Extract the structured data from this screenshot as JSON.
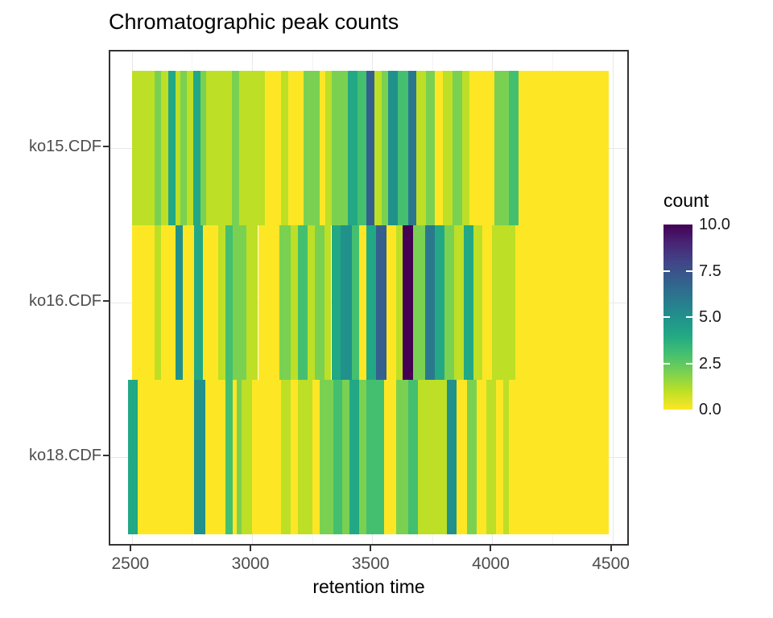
{
  "figure": {
    "title": "Chromatographic peak counts",
    "background": "#ffffff"
  },
  "chart_data": {
    "type": "heatmap",
    "title": "Chromatographic peak counts",
    "xlabel": "retention time",
    "ylabel": "",
    "legend_title": "count",
    "legend_position": "right",
    "grid": true,
    "x_domain": [
      2410,
      4575
    ],
    "x_ticks": [
      2500,
      3000,
      3500,
      4000,
      4500
    ],
    "x_minor_ticks": [
      2750,
      3250,
      3750,
      4250
    ],
    "categories": [
      "ko15.CDF",
      "ko16.CDF",
      "ko18.CDF"
    ],
    "legend_ticks": [
      0.0,
      2.5,
      5.0,
      7.5,
      10.0
    ],
    "count_domain": [
      0,
      10
    ],
    "palette_note": "reversed viridis, index = count 0..10",
    "palette": [
      "#FDE725",
      "#BDDF26",
      "#7AD151",
      "#44BF70",
      "#22A884",
      "#21918C",
      "#2A788E",
      "#355F8D",
      "#414487",
      "#482475",
      "#440154"
    ],
    "series": [
      {
        "name": "ko15.CDF",
        "runs": [
          [
            2500,
            2595,
            1
          ],
          [
            2595,
            2620,
            2
          ],
          [
            2620,
            2650,
            1
          ],
          [
            2650,
            2680,
            4
          ],
          [
            2680,
            2700,
            1
          ],
          [
            2700,
            2730,
            2
          ],
          [
            2730,
            2755,
            1
          ],
          [
            2755,
            2785,
            4
          ],
          [
            2785,
            2810,
            2
          ],
          [
            2810,
            2915,
            1
          ],
          [
            2915,
            2945,
            2
          ],
          [
            2945,
            3055,
            1
          ],
          [
            3055,
            3120,
            0
          ],
          [
            3120,
            3150,
            1
          ],
          [
            3150,
            3215,
            0
          ],
          [
            3215,
            3280,
            2
          ],
          [
            3280,
            3305,
            0
          ],
          [
            3305,
            3330,
            1
          ],
          [
            3330,
            3400,
            2
          ],
          [
            3400,
            3440,
            4
          ],
          [
            3440,
            3475,
            3
          ],
          [
            3475,
            3510,
            7
          ],
          [
            3510,
            3540,
            1
          ],
          [
            3540,
            3565,
            2
          ],
          [
            3565,
            3605,
            5
          ],
          [
            3605,
            3650,
            3
          ],
          [
            3650,
            3685,
            6
          ],
          [
            3685,
            3725,
            1
          ],
          [
            3725,
            3760,
            2
          ],
          [
            3760,
            3795,
            0
          ],
          [
            3795,
            3835,
            1
          ],
          [
            3835,
            3875,
            2
          ],
          [
            3875,
            3905,
            1
          ],
          [
            3905,
            4010,
            0
          ],
          [
            4010,
            4070,
            2
          ],
          [
            4070,
            4110,
            3
          ],
          [
            4110,
            4485,
            0
          ]
        ]
      },
      {
        "name": "ko16.CDF",
        "runs": [
          [
            2500,
            2595,
            0
          ],
          [
            2595,
            2620,
            1
          ],
          [
            2620,
            2680,
            0
          ],
          [
            2680,
            2710,
            5
          ],
          [
            2710,
            2760,
            0
          ],
          [
            2760,
            2795,
            4
          ],
          [
            2795,
            2860,
            0
          ],
          [
            2860,
            2890,
            1
          ],
          [
            2890,
            2920,
            3
          ],
          [
            2920,
            2975,
            2
          ],
          [
            2975,
            3025,
            1
          ],
          [
            3025,
            3115,
            0
          ],
          [
            3115,
            3160,
            2
          ],
          [
            3160,
            3190,
            1
          ],
          [
            3190,
            3230,
            3
          ],
          [
            3230,
            3260,
            1
          ],
          [
            3260,
            3300,
            2
          ],
          [
            3300,
            3330,
            1
          ],
          [
            3330,
            3370,
            4
          ],
          [
            3370,
            3415,
            5
          ],
          [
            3415,
            3445,
            3
          ],
          [
            3445,
            3475,
            0
          ],
          [
            3475,
            3515,
            4
          ],
          [
            3515,
            3560,
            7
          ],
          [
            3560,
            3600,
            0
          ],
          [
            3600,
            3625,
            1
          ],
          [
            3625,
            3670,
            10
          ],
          [
            3670,
            3720,
            2
          ],
          [
            3720,
            3760,
            6
          ],
          [
            3760,
            3800,
            4
          ],
          [
            3800,
            3840,
            2
          ],
          [
            3840,
            3880,
            1
          ],
          [
            3880,
            3920,
            4
          ],
          [
            3920,
            3960,
            1
          ],
          [
            3960,
            4000,
            0
          ],
          [
            4000,
            4095,
            1
          ],
          [
            4095,
            4485,
            0
          ]
        ]
      },
      {
        "name": "ko18.CDF",
        "runs": [
          [
            2485,
            2525,
            4
          ],
          [
            2525,
            2760,
            0
          ],
          [
            2760,
            2805,
            5
          ],
          [
            2805,
            2890,
            0
          ],
          [
            2890,
            2920,
            3
          ],
          [
            2920,
            2935,
            0
          ],
          [
            2935,
            2955,
            2
          ],
          [
            2955,
            3000,
            1
          ],
          [
            3000,
            3120,
            0
          ],
          [
            3120,
            3160,
            1
          ],
          [
            3160,
            3190,
            0
          ],
          [
            3190,
            3250,
            1
          ],
          [
            3250,
            3280,
            0
          ],
          [
            3280,
            3340,
            2
          ],
          [
            3340,
            3375,
            3
          ],
          [
            3375,
            3405,
            2
          ],
          [
            3405,
            3445,
            4
          ],
          [
            3445,
            3475,
            2
          ],
          [
            3475,
            3550,
            3
          ],
          [
            3550,
            3600,
            0
          ],
          [
            3600,
            3650,
            2
          ],
          [
            3650,
            3690,
            3
          ],
          [
            3690,
            3810,
            1
          ],
          [
            3810,
            3850,
            5
          ],
          [
            3850,
            3895,
            0
          ],
          [
            3895,
            3935,
            2
          ],
          [
            3935,
            3975,
            0
          ],
          [
            3975,
            4015,
            1
          ],
          [
            4015,
            4045,
            0
          ],
          [
            4045,
            4070,
            1
          ],
          [
            4070,
            4485,
            0
          ]
        ]
      }
    ]
  }
}
